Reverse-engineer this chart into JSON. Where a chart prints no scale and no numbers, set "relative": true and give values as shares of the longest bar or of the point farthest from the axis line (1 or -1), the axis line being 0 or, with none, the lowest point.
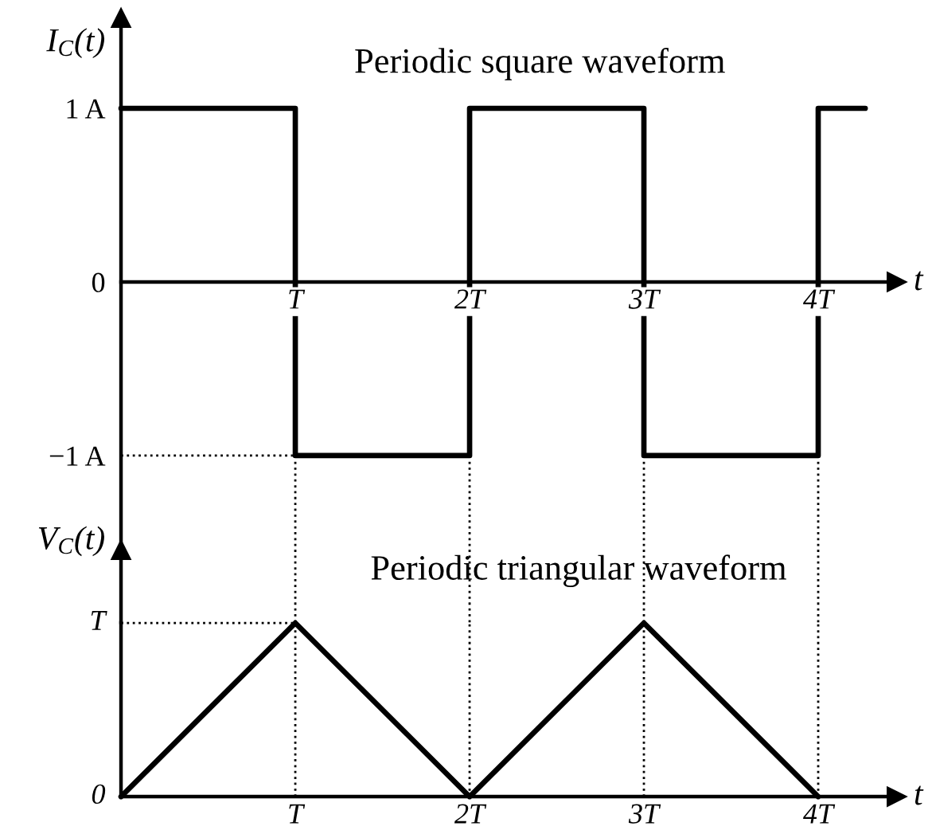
{
  "chart_data": [
    {
      "type": "step",
      "title": "Periodic square waveform",
      "xlabel": "t",
      "ylabel": "I$_{C}$(t)",
      "x": [
        0,
        1,
        2,
        3,
        4,
        4.27
      ],
      "series": [
        {
          "color": "#000000",
          "values": [
            1,
            -1,
            1,
            -1,
            1,
            1
          ]
        }
      ],
      "xlim": [
        0,
        4.45
      ],
      "xticks": [
        {
          "value": 1,
          "label": "T"
        },
        {
          "value": 2,
          "label": "2T"
        },
        {
          "value": 3,
          "label": "3T"
        },
        {
          "value": 4,
          "label": "4T"
        }
      ],
      "ylim": [
        -1.96,
        1.52
      ],
      "yticks": [
        {
          "value": -1,
          "label": "−1 A"
        },
        0,
        {
          "value": 1,
          "label": "1 A"
        }
      ],
      "ref_lines": [
        {
          "axis": "y",
          "value": -1,
          "color": "#000000",
          "line_style": "dotted"
        },
        {
          "axis": "x",
          "value": 1,
          "color": "#000000",
          "line_style": "dotted"
        },
        {
          "axis": "x",
          "value": 2,
          "color": "#000000",
          "line_style": "dotted"
        },
        {
          "axis": "x",
          "value": 3,
          "color": "#000000",
          "line_style": "dotted"
        },
        {
          "axis": "x",
          "value": 4,
          "color": "#000000",
          "line_style": "dotted"
        }
      ]
    },
    {
      "type": "line",
      "title": "Periodic triangular waveform",
      "xlabel": "t",
      "ylabel": "V$_{C}$(t)",
      "x": [
        0,
        1,
        2,
        3,
        4
      ],
      "relative": true,
      "series": [
        {
          "color": "#000000",
          "values": [
            0,
            1,
            0,
            1,
            0
          ]
        }
      ],
      "xlim": [
        0,
        4.45
      ],
      "xticks": [
        {
          "value": 1,
          "label": "T"
        },
        {
          "value": 2,
          "label": "2T"
        },
        {
          "value": 3,
          "label": "3T"
        },
        {
          "value": 4,
          "label": "4T"
        }
      ],
      "annotations": [
        {
          "text": "T",
          "x": 0,
          "y": 1
        },
        {
          "text": "0",
          "x": 0,
          "y": 0
        }
      ],
      "ref_lines": [
        {
          "axis": "y",
          "value": 1,
          "color": "#000000",
          "line_style": "dotted"
        },
        {
          "axis": "x",
          "value": 1,
          "color": "#000000",
          "line_style": "dotted"
        },
        {
          "axis": "x",
          "value": 2,
          "color": "#000000",
          "line_style": "dotted"
        },
        {
          "axis": "x",
          "value": 3,
          "color": "#000000",
          "line_style": "dotted"
        },
        {
          "axis": "x",
          "value": 4,
          "color": "#000000",
          "line_style": "dotted"
        }
      ]
    }
  ]
}
